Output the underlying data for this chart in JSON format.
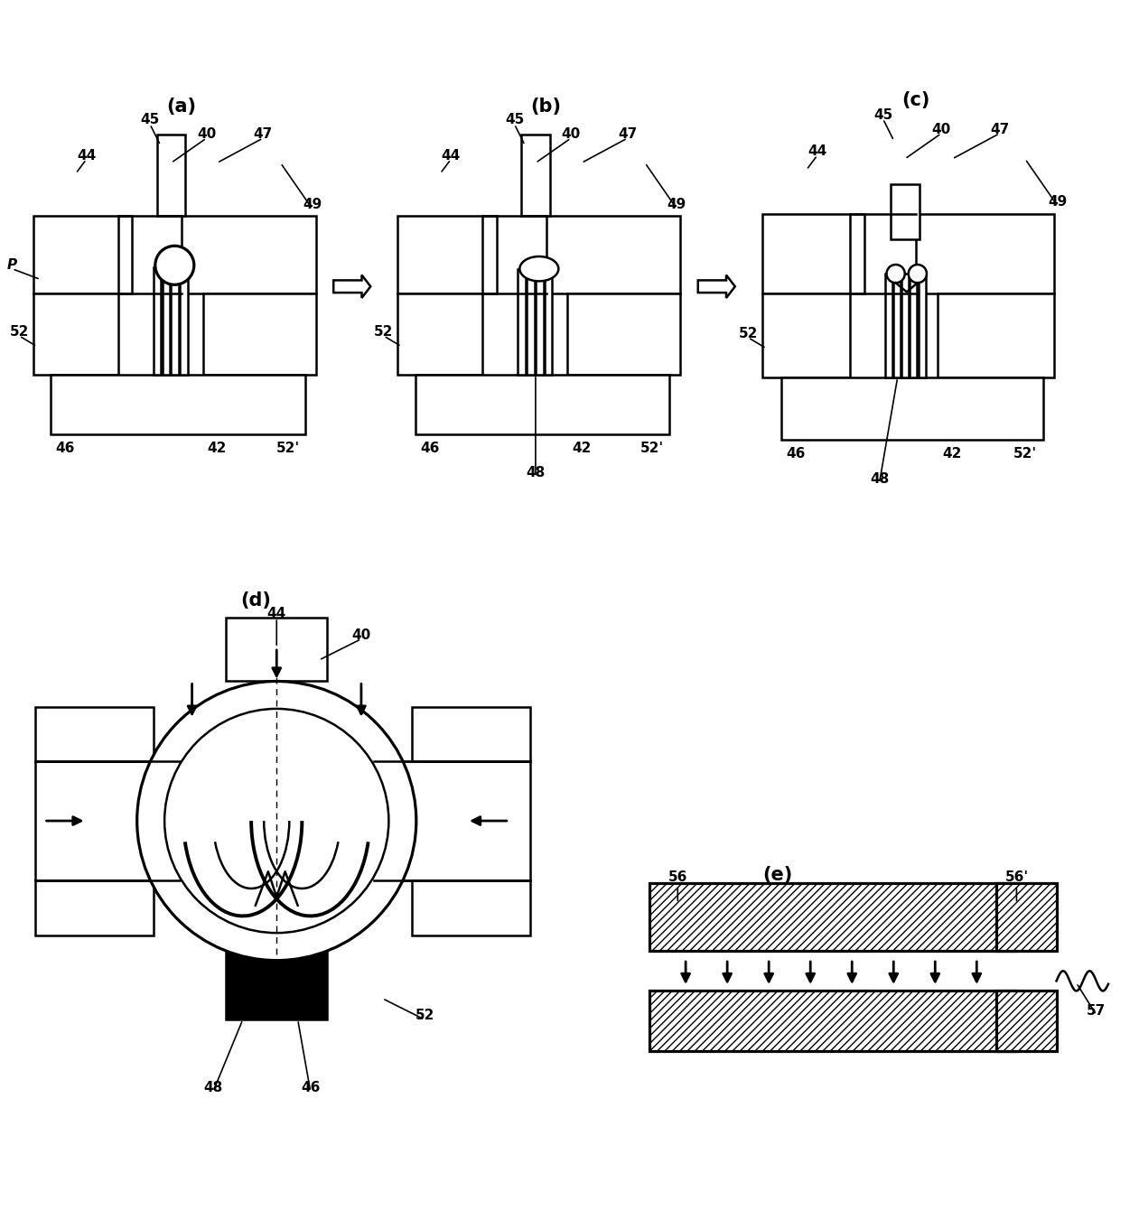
{
  "background_color": "#ffffff",
  "fig_width": 12.61,
  "fig_height": 13.5,
  "label_fontsize": 11,
  "sublabel_fontsize": 15,
  "linewidth": 1.8,
  "panels": {
    "a_label": "(a)",
    "b_label": "(b)",
    "c_label": "(c)",
    "d_label": "(d)",
    "e_label": "(e)"
  }
}
